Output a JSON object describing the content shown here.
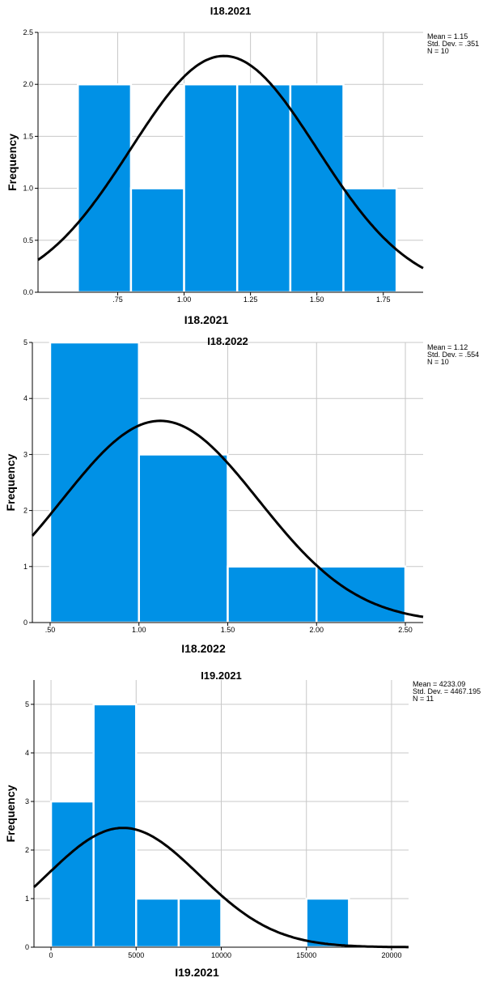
{
  "colors": {
    "bar": "#0091e6",
    "bar_stroke": "#ffffff",
    "grid": "#c8c8c8",
    "curve": "#000000",
    "axis": "#000000"
  },
  "chart_data": [
    {
      "type": "bar",
      "title": "I18.2021",
      "xlabel": "I18.2021",
      "ylabel": "Frequency",
      "grid": true,
      "legend": "top-right",
      "stats": [
        "Mean = 1.15",
        "Std. Dev. = .351",
        "N = 10"
      ],
      "normal_curve": {
        "mean": 1.15,
        "sd": 0.351,
        "n": 10,
        "bin_width": 0.2
      },
      "bins": [
        [
          0.6,
          0.8
        ],
        [
          0.8,
          1.0
        ],
        [
          1.0,
          1.2
        ],
        [
          1.2,
          1.4
        ],
        [
          1.4,
          1.6
        ],
        [
          1.6,
          1.8
        ]
      ],
      "values": [
        2,
        1,
        2,
        2,
        2,
        1
      ],
      "xlim": [
        0.45,
        1.9
      ],
      "ylim": [
        0,
        2.5
      ],
      "xticks": [
        0.75,
        1.0,
        1.25,
        1.5,
        1.75
      ],
      "xtick_labels": [
        ".75",
        "1.00",
        "1.25",
        "1.50",
        "1.75"
      ],
      "yticks": [
        0,
        0.5,
        1.0,
        1.5,
        2.0,
        2.5
      ],
      "ytick_labels": [
        "0.0",
        "0.5",
        "1.0",
        "1.5",
        "2.0",
        "2.5"
      ]
    },
    {
      "type": "bar",
      "title": "I18.2022",
      "xlabel": "I18.2022",
      "ylabel": "Frequency",
      "grid": true,
      "legend": "top-right",
      "stats": [
        "Mean = 1.12",
        "Std. Dev. = .554",
        "N = 10"
      ],
      "normal_curve": {
        "mean": 1.12,
        "sd": 0.554,
        "n": 10,
        "bin_width": 0.5
      },
      "bins": [
        [
          0.5,
          1.0
        ],
        [
          1.0,
          1.5
        ],
        [
          1.5,
          2.0
        ],
        [
          2.0,
          2.5
        ]
      ],
      "values": [
        5,
        3,
        1,
        1
      ],
      "xlim": [
        0.4,
        2.6
      ],
      "ylim": [
        0,
        5
      ],
      "xticks": [
        0.5,
        1.0,
        1.5,
        2.0,
        2.5
      ],
      "xtick_labels": [
        ".50",
        "1.00",
        "1.50",
        "2.00",
        "2.50"
      ],
      "yticks": [
        0,
        1,
        2,
        3,
        4,
        5
      ],
      "ytick_labels": [
        "0",
        "1",
        "2",
        "3",
        "4",
        "5"
      ]
    },
    {
      "type": "bar",
      "title": "I19.2021",
      "xlabel": "I19.2021",
      "ylabel": "Frequency",
      "grid": true,
      "legend": "top-right",
      "stats": [
        "Mean = 4233.09",
        "Std. Dev. = 4467.195",
        "N = 11"
      ],
      "normal_curve": {
        "mean": 4233.09,
        "sd": 4467.195,
        "n": 11,
        "bin_width": 2500
      },
      "bins": [
        [
          0,
          2500
        ],
        [
          2500,
          5000
        ],
        [
          5000,
          7500
        ],
        [
          7500,
          10000
        ],
        [
          15000,
          17500
        ]
      ],
      "values": [
        3,
        5,
        1,
        1,
        1
      ],
      "xlim": [
        -1000,
        21000
      ],
      "ylim": [
        0,
        5.5
      ],
      "xticks": [
        0,
        5000,
        10000,
        15000,
        20000
      ],
      "xtick_labels": [
        "0",
        "5000",
        "10000",
        "15000",
        "20000"
      ],
      "yticks": [
        0,
        1,
        2,
        3,
        4,
        5
      ],
      "ytick_labels": [
        "0",
        "1",
        "2",
        "3",
        "4",
        "5"
      ]
    }
  ]
}
